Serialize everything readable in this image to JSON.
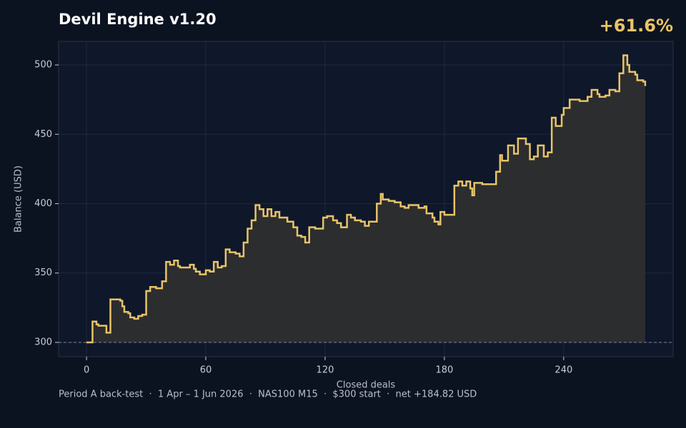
{
  "chart_data": {
    "type": "step",
    "title": "Devil Engine v1.20",
    "annotation": "+61.6%",
    "x_label": "Closed deals",
    "y_label": "Balance (USD)",
    "footer": "Period A back-test  ·  1 Apr – 1 Jun 2026  ·  NAS100 M15  ·  $300 start  ·  net +184.82 USD",
    "x": [
      0,
      3,
      5,
      6,
      10,
      12,
      17,
      18,
      19,
      21,
      22,
      24,
      26,
      28,
      30,
      32,
      35,
      38,
      40,
      42,
      44,
      46,
      47,
      52,
      54,
      55,
      57,
      60,
      62,
      64,
      66,
      68,
      70,
      72,
      75,
      77,
      79,
      81,
      83,
      85,
      87,
      89,
      91,
      93,
      95,
      97,
      101,
      104,
      106,
      108,
      110,
      112,
      115,
      119,
      121,
      124,
      126,
      128,
      131,
      133,
      135,
      138,
      140,
      142,
      146,
      148,
      149,
      152,
      155,
      158,
      160,
      162,
      167,
      170,
      171,
      174,
      175,
      177,
      178,
      180,
      185,
      187,
      189,
      191,
      193,
      194,
      195,
      199,
      206,
      208,
      209,
      212,
      215,
      217,
      221,
      223,
      225,
      227,
      230,
      232,
      234,
      236,
      239,
      240,
      243,
      248,
      252,
      254,
      257,
      258,
      261,
      263,
      266,
      268,
      270,
      272,
      273,
      276,
      277,
      280,
      281
    ],
    "series": [
      {
        "name": "Balance",
        "color": "#e8c468",
        "values": [
          300,
          315,
          313,
          312,
          307,
          331,
          330,
          326,
          322,
          321,
          318,
          317,
          319,
          320,
          337,
          340,
          339,
          344,
          358,
          356,
          359,
          355,
          354,
          356,
          353,
          351,
          349,
          352,
          351,
          358,
          354,
          355,
          367,
          365,
          364,
          362,
          372,
          382,
          388,
          399,
          396,
          391,
          396,
          391,
          394,
          390,
          387,
          383,
          377,
          376,
          372,
          383,
          382,
          390,
          391,
          388,
          386,
          383,
          392,
          390,
          388,
          387,
          384,
          387,
          400,
          407,
          403,
          402,
          401,
          398,
          397,
          399,
          397,
          398,
          393,
          390,
          387,
          385,
          394,
          392,
          413,
          416,
          413,
          416,
          411,
          406,
          415,
          414,
          423,
          435,
          431,
          442,
          436,
          447,
          443,
          432,
          434,
          442,
          434,
          437,
          462,
          456,
          464,
          469,
          475,
          474,
          477,
          482,
          479,
          477,
          478,
          482,
          481,
          494,
          507,
          500,
          495,
          493,
          489,
          488,
          484.82
        ]
      }
    ],
    "baseline": 300,
    "xlim": [
      -14.05,
      295.05
    ],
    "ylim": [
      289.7,
      517
    ],
    "xticks": [
      0,
      60,
      120,
      180,
      240
    ],
    "yticks": [
      300,
      350,
      400,
      450,
      500
    ],
    "grid": true,
    "fill_color": "#2e2e2e"
  }
}
